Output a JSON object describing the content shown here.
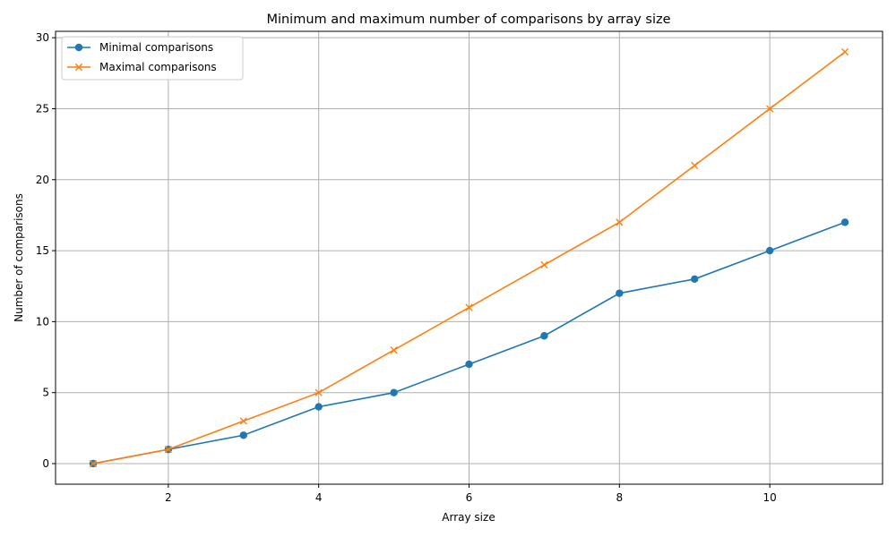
{
  "chart_data": {
    "type": "line",
    "title": "Minimum and maximum number of comparisons by array size",
    "xlabel": "Array size",
    "ylabel": "Number of comparisons",
    "x": [
      1,
      2,
      3,
      4,
      5,
      6,
      7,
      8,
      9,
      10,
      11
    ],
    "xlim": [
      0.5,
      11.5
    ],
    "ylim": [
      -1.45,
      30.45
    ],
    "xticks": [
      2,
      4,
      6,
      8,
      10
    ],
    "yticks": [
      0,
      5,
      10,
      15,
      20,
      25,
      30
    ],
    "grid": true,
    "legend_position": "top-left",
    "series": [
      {
        "name": "Minimal comparisons",
        "values": [
          0,
          1,
          2,
          4,
          5,
          7,
          9,
          12,
          13,
          15,
          17
        ],
        "color": "#1f77b4",
        "marker": "circle"
      },
      {
        "name": "Maximal comparisons",
        "values": [
          0,
          1,
          3,
          5,
          8,
          11,
          14,
          17,
          21,
          25,
          29
        ],
        "color": "#ff7f0e",
        "marker": "x"
      }
    ]
  }
}
